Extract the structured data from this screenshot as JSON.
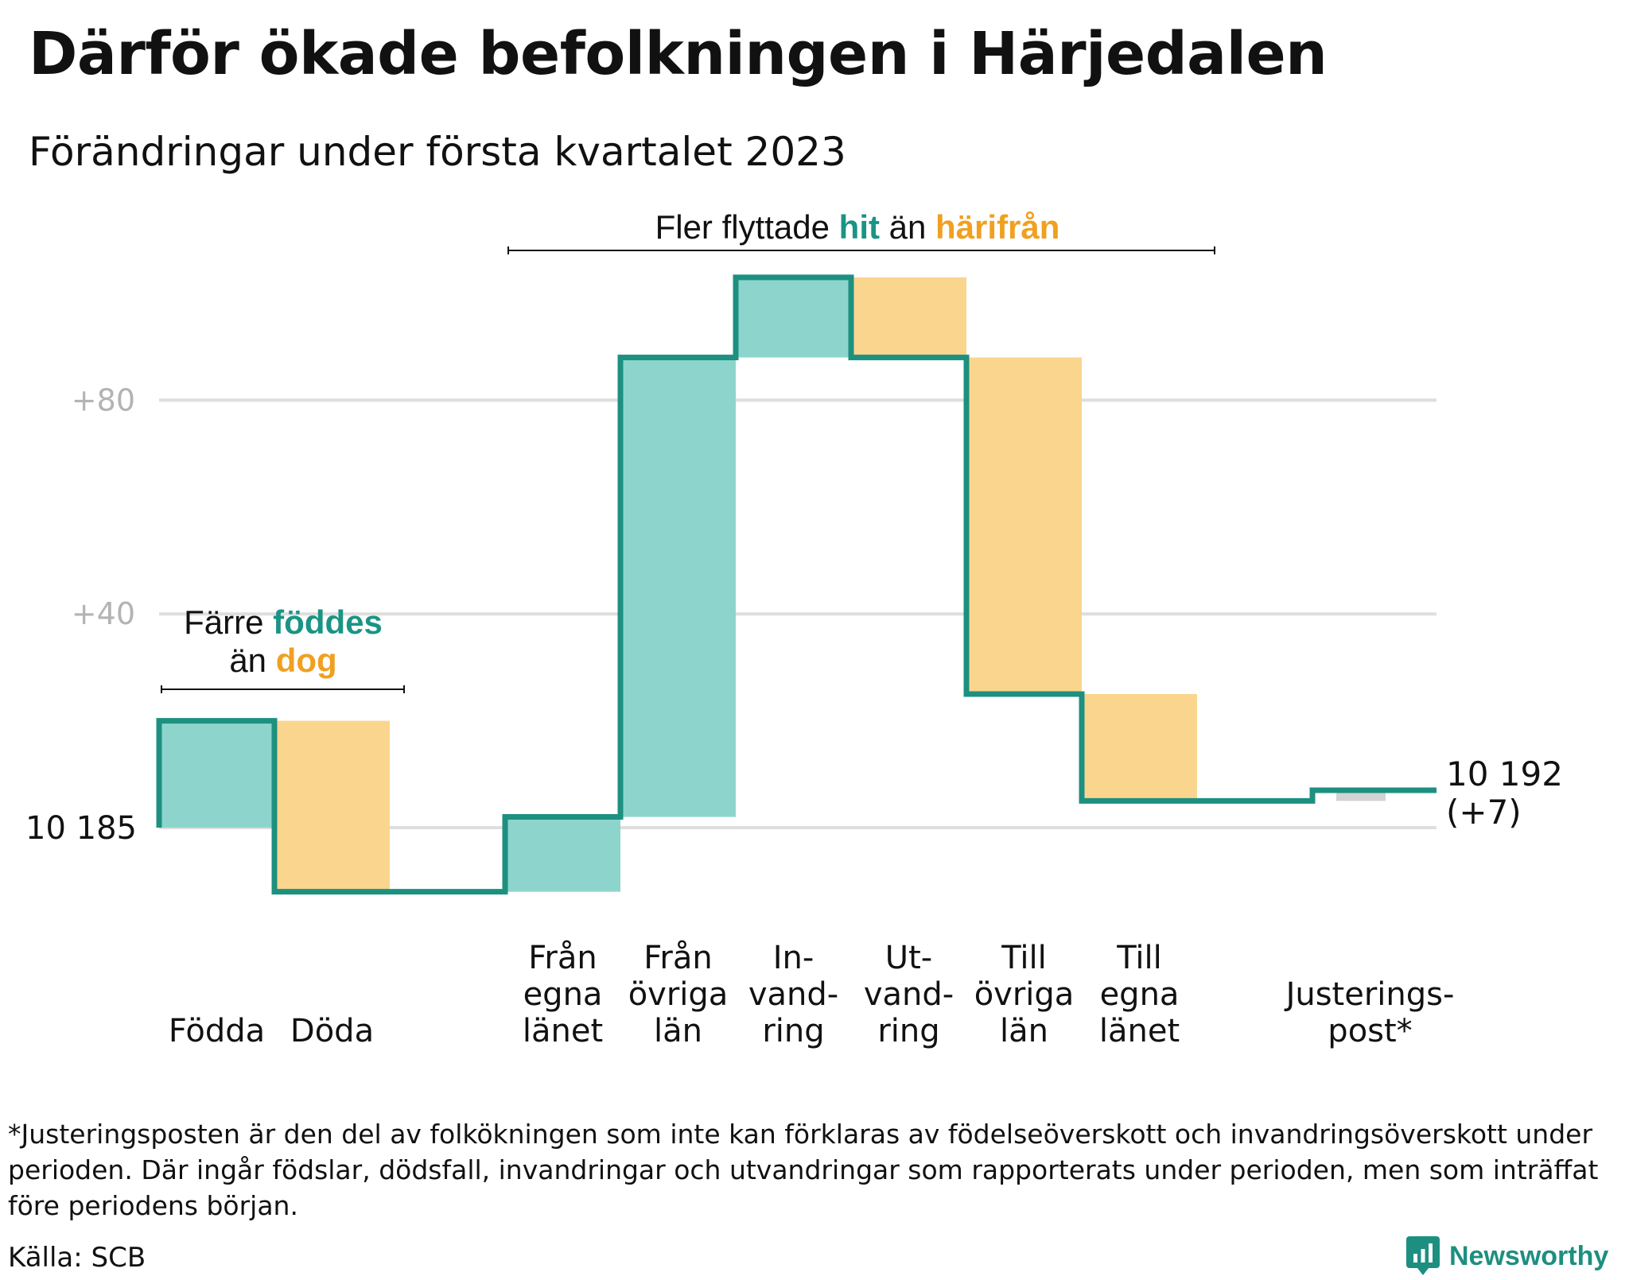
{
  "title": "Därför ökade befolkningen i Härjedalen",
  "subtitle": "Förändringar under första kvartalet 2023",
  "colors": {
    "increase_fill": "#8dd5cc",
    "decrease_fill": "#fad58e",
    "adjustment_fill": "#d3d3d3",
    "line": "#1d9080",
    "accent_teal": "#1a9484",
    "accent_orange": "#f0a020",
    "gridline": "#dedede"
  },
  "annotations": {
    "births_deaths": {
      "line1_prefix": "Färre ",
      "line1_highlight": "föddes",
      "line2_prefix": "än ",
      "line2_highlight": "dog"
    },
    "migration": {
      "prefix": "Fler flyttade ",
      "highlight1": "hit",
      "middle": " än ",
      "highlight2": "härifrån"
    }
  },
  "end_label": {
    "line1": "10 192",
    "line2": "(+7)"
  },
  "footnote": "*Justeringsposten är den del av folkökningen som inte kan förklaras av födelseöverskott och invandringsöverskott under perioden. Där ingår födslar, dödsfall, invandringar och utvandringar som rapporterats under perioden, men som inträffat före periodens början.",
  "source": "Källa: SCB",
  "brand": {
    "name": "Newsworthy",
    "icon": "newsworthy-logo-icon"
  },
  "chart_data": {
    "type": "waterfall",
    "title": "Därför ökade befolkningen i Härjedalen",
    "subtitle": "Förändringar under första kvartalet 2023",
    "base_value": 10185,
    "base_label": "10 185",
    "end_value": 10192,
    "net_change": 7,
    "y_ticks": [
      {
        "offset": 40,
        "label": "+40"
      },
      {
        "offset": 80,
        "label": "+80"
      }
    ],
    "y_range": [
      -14,
      106
    ],
    "grid": true,
    "categories": [
      {
        "label": [
          "Födda"
        ],
        "change": 20,
        "kind": "increase"
      },
      {
        "label": [
          "Döda"
        ],
        "change": -32,
        "kind": "decrease"
      },
      {
        "label": [],
        "change": 0,
        "kind": "spacer"
      },
      {
        "label": [
          "Från",
          "egna",
          "länet"
        ],
        "change": 14,
        "kind": "increase"
      },
      {
        "label": [
          "Från",
          "övriga",
          "län"
        ],
        "change": 86,
        "kind": "increase"
      },
      {
        "label": [
          "In-",
          "vand-",
          "ring"
        ],
        "change": 15,
        "kind": "increase"
      },
      {
        "label": [
          "Ut-",
          "vand-",
          "ring"
        ],
        "change": -15,
        "kind": "decrease"
      },
      {
        "label": [
          "Till",
          "övriga",
          "län"
        ],
        "change": -63,
        "kind": "decrease"
      },
      {
        "label": [
          "Till",
          "egna",
          "länet"
        ],
        "change": -20,
        "kind": "decrease"
      },
      {
        "label": [],
        "change": 0,
        "kind": "spacer"
      },
      {
        "label": [
          "Justerings-",
          "post*"
        ],
        "change": 2,
        "kind": "adjustment"
      }
    ]
  }
}
